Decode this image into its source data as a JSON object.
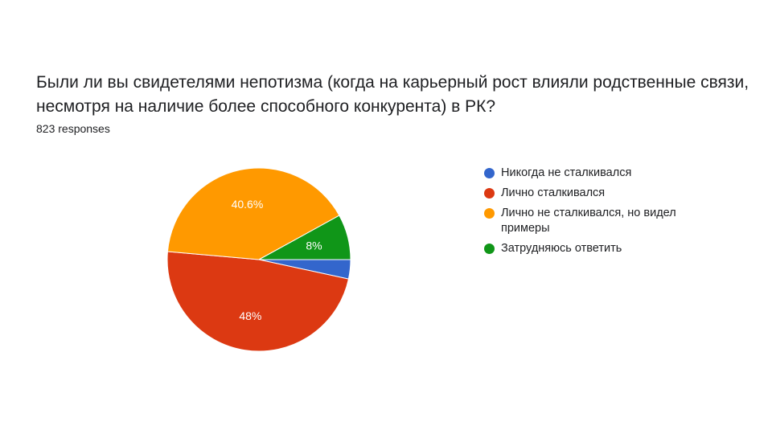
{
  "question": {
    "title": "Были ли вы свидетелями непотизма (когда на карьерный рост влияли родственные связи, несмотря на наличие более способного конкурента) в РК?",
    "responses": "823 responses"
  },
  "chart_data": {
    "type": "pie",
    "legend_position": "right",
    "slices": [
      {
        "name": "Никогда не сталкивался",
        "value": 3.4,
        "label": "",
        "color": "#3366cc"
      },
      {
        "name": "Лично сталкивался",
        "value": 48.0,
        "label": "48%",
        "color": "#dc3912"
      },
      {
        "name": "Лично не сталкивался, но видел примеры",
        "value": 40.6,
        "label": "40.6%",
        "color": "#ff9900"
      },
      {
        "name": "Затрудняюсь ответить",
        "value": 8.0,
        "label": "8%",
        "color": "#109618"
      }
    ]
  }
}
